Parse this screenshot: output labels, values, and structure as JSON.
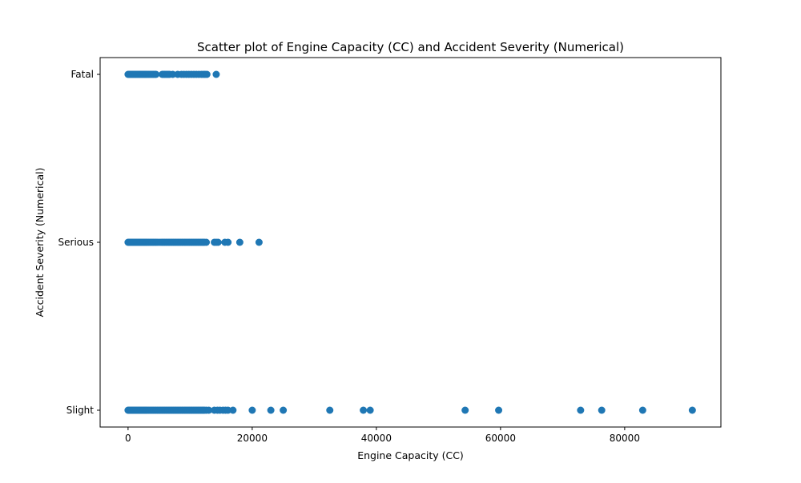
{
  "chart_data": {
    "type": "scatter",
    "title": "Scatter plot of Engine Capacity (CC) and Accident Severity (Numerical)",
    "xlabel": "Engine Capacity (CC)",
    "ylabel": "Accident Severity (Numerical)",
    "xlim": [
      -4500,
      95500
    ],
    "ylim": [
      -0.1,
      2.1
    ],
    "x_ticks": [
      0,
      20000,
      40000,
      60000,
      80000
    ],
    "x_tick_labels": [
      "0",
      "20000",
      "40000",
      "60000",
      "80000"
    ],
    "y_ticks": [
      0,
      1,
      2
    ],
    "y_tick_labels": [
      "Slight",
      "Serious",
      "Fatal"
    ],
    "grid": false,
    "marker_color": "#1f77b4",
    "series": [
      {
        "y": 2,
        "x": [
          0,
          125,
          250,
          400,
          550,
          700,
          850,
          1000,
          1150,
          1300,
          1450,
          1600,
          1750,
          1900,
          2050,
          2200,
          2350,
          2500,
          2650,
          2800,
          2950,
          3100,
          3300,
          3500,
          3700,
          3900,
          4100,
          4300,
          4500,
          5500,
          5700,
          5900,
          6100,
          6300,
          6500,
          6700,
          7200,
          8000,
          8600,
          9000,
          9400,
          9800,
          10200,
          10600,
          11000,
          11400,
          11800,
          12100,
          12400,
          12700,
          14200
        ]
      },
      {
        "y": 1,
        "x": [
          0,
          125,
          250,
          400,
          550,
          700,
          850,
          1000,
          1150,
          1300,
          1450,
          1600,
          1750,
          1900,
          2050,
          2200,
          2350,
          2500,
          2650,
          2800,
          2950,
          3100,
          3300,
          3500,
          3700,
          3900,
          4100,
          4300,
          4500,
          4700,
          5000,
          5300,
          5500,
          5700,
          5900,
          6100,
          6300,
          6500,
          6700,
          6900,
          7100,
          7300,
          7500,
          7700,
          7900,
          8100,
          8300,
          8500,
          8700,
          8900,
          9100,
          9300,
          9500,
          9700,
          9900,
          10100,
          10300,
          10500,
          10700,
          10900,
          11100,
          11300,
          11500,
          11700,
          11900,
          12100,
          12300,
          12600,
          13900,
          14200,
          14500,
          15600,
          16100,
          18000,
          21100
        ]
      },
      {
        "y": 0,
        "x": [
          0,
          125,
          250,
          400,
          550,
          700,
          850,
          1000,
          1150,
          1300,
          1450,
          1600,
          1750,
          1900,
          2050,
          2200,
          2350,
          2500,
          2650,
          2800,
          2950,
          3100,
          3300,
          3500,
          3700,
          3900,
          4100,
          4300,
          4500,
          4700,
          4900,
          5100,
          5300,
          5500,
          5700,
          5900,
          6100,
          6300,
          6500,
          6700,
          6900,
          7100,
          7300,
          7500,
          7700,
          7900,
          8100,
          8300,
          8500,
          8700,
          8900,
          9100,
          9300,
          9500,
          9700,
          9900,
          10100,
          10300,
          10500,
          10700,
          10900,
          11100,
          11300,
          11500,
          11700,
          11900,
          12100,
          12300,
          12600,
          13000,
          13900,
          14400,
          14800,
          15300,
          15700,
          16100,
          16900,
          20000,
          23000,
          25000,
          32500,
          37900,
          39000,
          54300,
          59700,
          72900,
          76300,
          82900,
          90900
        ]
      }
    ]
  }
}
